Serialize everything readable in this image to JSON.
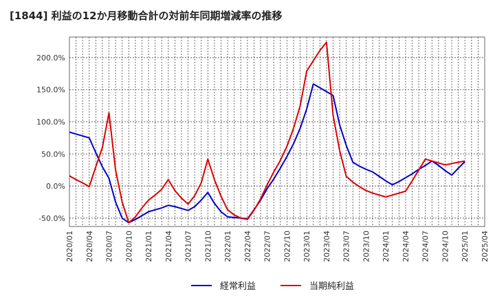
{
  "chart_data": {
    "type": "line",
    "title": "[1844]  利益の12か月移動合計の対前年同期増減率の推移",
    "xlabel": "",
    "ylabel": "",
    "ylim": [
      -63,
      232
    ],
    "y_ticks": [
      -50,
      0,
      50,
      100,
      150,
      200
    ],
    "y_tick_labels": [
      "-50.0%",
      "0.0%",
      "50.0%",
      "100.0%",
      "150.0%",
      "200.0%"
    ],
    "grid": true,
    "legend_position": "bottom",
    "categories": [
      "2020/01",
      "2020/02",
      "2020/03",
      "2020/04",
      "2020/05",
      "2020/06",
      "2020/07",
      "2020/08",
      "2020/09",
      "2020/10",
      "2020/11",
      "2020/12",
      "2021/01",
      "2021/02",
      "2021/03",
      "2021/04",
      "2021/05",
      "2021/06",
      "2021/07",
      "2021/08",
      "2021/09",
      "2021/10",
      "2021/11",
      "2021/12",
      "2022/01",
      "2022/02",
      "2022/03",
      "2022/04",
      "2022/05",
      "2022/06",
      "2022/07",
      "2022/08",
      "2022/09",
      "2022/10",
      "2022/11",
      "2022/12",
      "2023/01",
      "2023/02",
      "2023/03",
      "2023/04",
      "2023/05",
      "2023/06",
      "2023/07",
      "2023/08",
      "2023/09",
      "2023/10",
      "2023/11",
      "2023/12",
      "2024/01",
      "2024/02",
      "2024/03",
      "2024/04",
      "2024/05",
      "2024/06",
      "2024/07",
      "2024/08",
      "2024/09",
      "2024/10",
      "2024/11",
      "2024/12",
      "2025/01",
      "2025/02",
      "2025/03",
      "2025/04"
    ],
    "x_tick_labels": [
      "2020/01",
      "2020/04",
      "2020/07",
      "2020/10",
      "2021/01",
      "2021/04",
      "2021/07",
      "2021/10",
      "2022/01",
      "2022/04",
      "2022/07",
      "2022/10",
      "2023/01",
      "2023/04",
      "2023/07",
      "2023/10",
      "2024/01",
      "2024/04",
      "2024/07",
      "2024/10",
      "2025/01",
      "2025/04"
    ],
    "series": [
      {
        "name": "経常利益",
        "color": "#0000cc",
        "values": [
          84,
          81,
          78,
          75,
          52,
          30,
          12,
          -25,
          -50,
          -57,
          -52,
          -46,
          -40,
          -37,
          -34,
          -30,
          -32,
          -35,
          -38,
          -32,
          -22,
          -10,
          -27,
          -40,
          -48,
          -49,
          -50,
          -51,
          -37,
          -22,
          -4,
          11,
          28,
          46,
          66,
          90,
          120,
          159,
          153,
          147,
          141,
          95,
          63,
          37,
          31,
          26,
          22,
          15,
          8,
          2,
          7,
          13,
          19,
          26,
          32,
          39,
          32,
          24,
          17,
          28,
          38,
          null,
          null,
          null
        ]
      },
      {
        "name": "当期純利益",
        "color": "#dd0000",
        "values": [
          16,
          10,
          5,
          -1,
          30,
          60,
          114,
          25,
          -25,
          -57,
          -48,
          -34,
          -22,
          -14,
          -5,
          10,
          -7,
          -19,
          -28,
          -15,
          5,
          42,
          10,
          -16,
          -37,
          -45,
          -50,
          -52,
          -38,
          -20,
          2,
          22,
          40,
          62,
          90,
          125,
          179,
          195,
          211,
          224,
          110,
          55,
          15,
          6,
          -1,
          -7,
          -11,
          -14,
          -17,
          -14,
          -11,
          -8,
          8,
          25,
          42,
          39,
          36,
          33,
          35,
          37,
          39,
          null,
          null,
          null
        ]
      }
    ]
  }
}
